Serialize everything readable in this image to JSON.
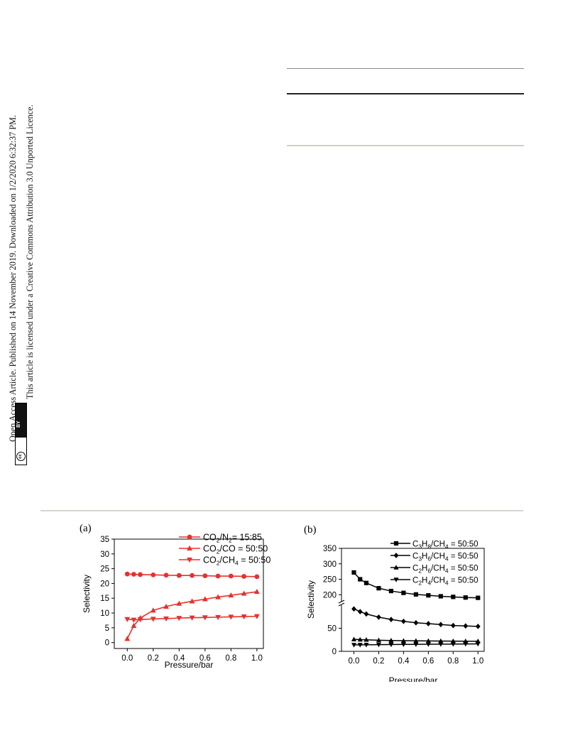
{
  "sidebar": {
    "line1": "Open Access Article. Published on 14 November 2019. Downloaded on 1/2/2020 6:32:37 PM.",
    "line2": "This article is licensed under a Creative Commons Attribution 3.0 Unported Licence.",
    "badge_cc": "cc",
    "badge_by": "BY"
  },
  "colors": {
    "panel_a_series": "#e8302c",
    "panel_b_series": "#000000"
  },
  "chart_data": [
    {
      "type": "line",
      "panel_label": "(a)",
      "xlabel": "Pressure/bar",
      "ylabel": "Selectivity",
      "xlim": [
        -0.1,
        1.05
      ],
      "ylim": [
        -2,
        35
      ],
      "xticks": [
        "0.0",
        "0.2",
        "0.4",
        "0.6",
        "0.8",
        "1.0"
      ],
      "yticks": [
        "0",
        "5",
        "10",
        "15",
        "20",
        "25",
        "30",
        "35"
      ],
      "legend_position": "top-right",
      "x": [
        0.0,
        0.05,
        0.1,
        0.2,
        0.3,
        0.4,
        0.5,
        0.6,
        0.7,
        0.8,
        0.9,
        1.0
      ],
      "series": [
        {
          "name": "CO2/N2= 15:85",
          "name_parts": [
            "CO",
            "2",
            "/N",
            "2",
            "= 15:85"
          ],
          "marker": "circle",
          "values": [
            23.2,
            23.1,
            23.0,
            22.9,
            22.8,
            22.7,
            22.7,
            22.6,
            22.5,
            22.5,
            22.4,
            22.3
          ]
        },
        {
          "name": "CO2/CO = 50:50",
          "name_parts": [
            "CO",
            "2",
            "/CO = 50:50",
            "",
            ""
          ],
          "marker": "triangle-up",
          "values": [
            1.3,
            5.7,
            8.3,
            10.9,
            12.2,
            13.2,
            14.0,
            14.7,
            15.4,
            16.0,
            16.6,
            17.2
          ]
        },
        {
          "name": "CO2/CH4 = 50:50",
          "name_parts": [
            "CO",
            "2",
            "/CH",
            "4",
            " = 50:50"
          ],
          "marker": "triangle-down",
          "values": [
            7.9,
            7.7,
            7.8,
            8.0,
            8.1,
            8.3,
            8.4,
            8.5,
            8.6,
            8.7,
            8.8,
            8.9
          ]
        }
      ]
    },
    {
      "type": "line",
      "panel_label": "(b)",
      "xlabel": "Pressure/bar",
      "ylabel": "Selectivity",
      "xlim": [
        -0.1,
        1.05
      ],
      "ylim": [
        0,
        350
      ],
      "axis_break": "between 100 and 200",
      "xticks": [
        "0.0",
        "0.2",
        "0.4",
        "0.6",
        "0.8",
        "1.0"
      ],
      "yticks": [
        "0",
        "50",
        "200",
        "250",
        "300",
        "350"
      ],
      "legend_position": "top-right",
      "x": [
        0.0,
        0.05,
        0.1,
        0.2,
        0.3,
        0.4,
        0.5,
        0.6,
        0.7,
        0.8,
        0.9,
        1.0
      ],
      "series": [
        {
          "name": "C3H8/CH4 = 50:50",
          "name_parts": [
            "C",
            "3",
            "H",
            "8",
            "/CH",
            "4",
            " = 50:50"
          ],
          "marker": "square",
          "values": [
            272,
            250,
            238,
            221,
            212,
            206,
            201,
            198,
            195,
            193,
            191,
            190
          ]
        },
        {
          "name": "C3H6/CH4 = 50:50",
          "name_parts": [
            "C",
            "3",
            "H",
            "6",
            "/CH",
            "4",
            " = 50:50"
          ],
          "marker": "diamond",
          "values": [
            92,
            86,
            81,
            74,
            69,
            65,
            62,
            60,
            58,
            56,
            55,
            54
          ]
        },
        {
          "name": "C2H6/CH4 = 50:50",
          "name_parts": [
            "C",
            "2",
            "H",
            "6",
            "/CH",
            "4",
            " = 50:50"
          ],
          "marker": "triangle-up",
          "values": [
            26,
            25.5,
            25,
            24,
            23.5,
            23,
            22.8,
            22.5,
            22.3,
            22.1,
            22,
            21.9
          ]
        },
        {
          "name": "C2H4/CH4 = 50:50",
          "name_parts": [
            "C",
            "2",
            "H",
            "4",
            "/CH",
            "4",
            " = 50:50"
          ],
          "marker": "triangle-down",
          "values": [
            14,
            14,
            14.2,
            14.5,
            14.8,
            15,
            15.2,
            15.4,
            15.6,
            15.8,
            16,
            16.2
          ]
        }
      ]
    }
  ]
}
